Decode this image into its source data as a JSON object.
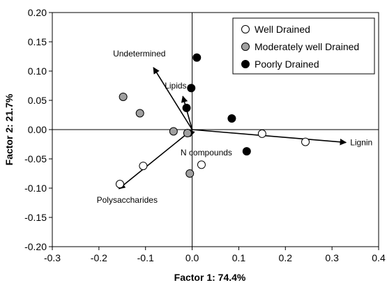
{
  "chart_data": {
    "type": "scatter",
    "xlabel": "Factor 1: 74.4%",
    "ylabel": "Factor 2: 21.7%",
    "xlim": [
      -0.3,
      0.4
    ],
    "ylim": [
      -0.2,
      0.2
    ],
    "xticks": [
      -0.3,
      -0.2,
      -0.1,
      0.0,
      0.1,
      0.2,
      0.3,
      0.4
    ],
    "yticks": [
      -0.2,
      -0.15,
      -0.1,
      -0.05,
      0.0,
      0.05,
      0.1,
      0.15,
      0.2
    ],
    "xtick_labels": [
      "-0.3",
      "-0.2",
      "-0.1",
      "0.0",
      "0.1",
      "0.2",
      "0.3",
      "0.4"
    ],
    "ytick_labels": [
      "-0.20",
      "-0.15",
      "-0.10",
      "-0.05",
      "0.00",
      "0.05",
      "0.10",
      "0.15",
      "0.20"
    ],
    "grid": false,
    "legend_position": "top-right",
    "series": [
      {
        "name": "Well Drained",
        "color": "#ffffff",
        "points": [
          {
            "x": -0.155,
            "y": -0.093
          },
          {
            "x": -0.105,
            "y": -0.062
          },
          {
            "x": 0.02,
            "y": -0.06
          },
          {
            "x": 0.15,
            "y": -0.007
          },
          {
            "x": 0.243,
            "y": -0.021
          }
        ]
      },
      {
        "name": "Moderately well Drained",
        "color": "#a0a0a0",
        "points": [
          {
            "x": -0.148,
            "y": 0.056
          },
          {
            "x": -0.112,
            "y": 0.028
          },
          {
            "x": -0.04,
            "y": -0.003
          },
          {
            "x": -0.01,
            "y": -0.006
          },
          {
            "x": -0.005,
            "y": -0.075
          }
        ]
      },
      {
        "name": "Poorly Drained",
        "color": "#000000",
        "points": [
          {
            "x": 0.01,
            "y": 0.123
          },
          {
            "x": -0.002,
            "y": 0.071
          },
          {
            "x": -0.012,
            "y": 0.037
          },
          {
            "x": 0.085,
            "y": 0.019
          },
          {
            "x": 0.117,
            "y": -0.037
          }
        ]
      }
    ],
    "vectors": [
      {
        "label": "Undetermined",
        "x": -0.083,
        "y": 0.106
      },
      {
        "label": "Lipids",
        "x": -0.02,
        "y": 0.057
      },
      {
        "label": "Lignin",
        "x": 0.33,
        "y": -0.022
      },
      {
        "label": "N compounds",
        "x": -0.004,
        "y": -0.012
      },
      {
        "label": "Polysaccharides",
        "x": -0.157,
        "y": -0.101
      }
    ]
  }
}
